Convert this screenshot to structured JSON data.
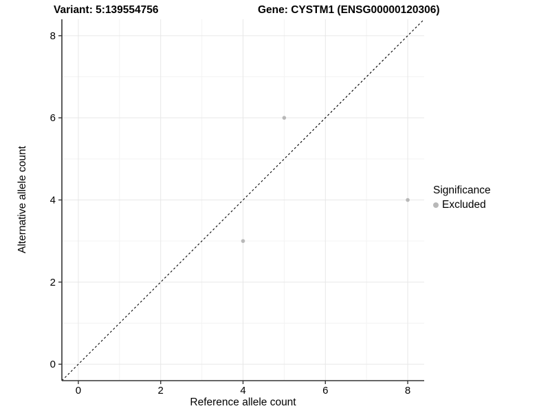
{
  "chart_data": {
    "type": "scatter",
    "title_left": "Variant: 5:139554756",
    "title_right": "Gene: CYSTM1 (ENSG00000120306)",
    "xlabel": "Reference allele count",
    "ylabel": "Alternative allele count",
    "xlim": [
      -0.4,
      8.4
    ],
    "ylim": [
      -0.4,
      8.4
    ],
    "x_ticks": [
      0,
      2,
      4,
      6,
      8
    ],
    "y_ticks": [
      0,
      2,
      4,
      6,
      8
    ],
    "x_minor_ticks": [
      1,
      3,
      5,
      7
    ],
    "y_minor_ticks": [
      1,
      3,
      5,
      7
    ],
    "grid": true,
    "legend_position": "right",
    "series": [
      {
        "name": "Excluded",
        "color": "#b8b8b8",
        "points": [
          {
            "x": 5,
            "y": 6
          },
          {
            "x": 8,
            "y": 4
          },
          {
            "x": 4,
            "y": 3
          }
        ]
      }
    ],
    "reference_line": {
      "type": "identity",
      "slope": 1,
      "intercept": 0,
      "style": "dashed",
      "color": "#000000"
    },
    "legend": {
      "title": "Significance",
      "items": [
        {
          "label": "Excluded",
          "color": "#b8b8b8"
        }
      ]
    },
    "colors": {
      "grid_major": "#e7e7e7",
      "grid_minor": "#f3f3f3",
      "axis": "#333333",
      "text": "#000000",
      "background": "#ffffff"
    }
  }
}
